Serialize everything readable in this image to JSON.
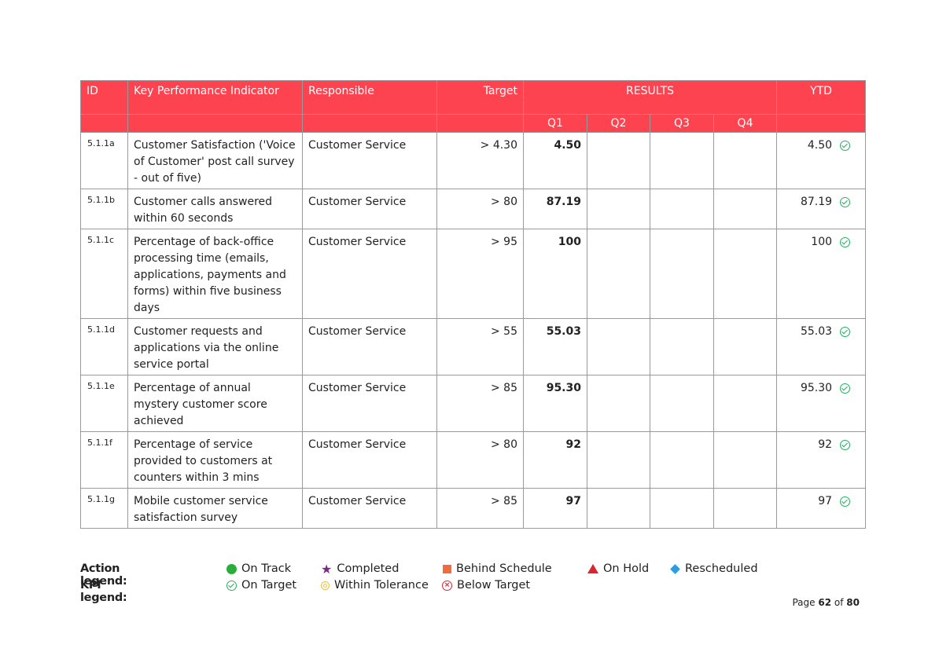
{
  "table": {
    "headers": {
      "id": "ID",
      "kpi": "Key Performance Indicator",
      "responsible": "Responsible",
      "target": "Target",
      "results": "RESULTS",
      "ytd": "YTD",
      "quarters": [
        "Q1",
        "Q2",
        "Q3",
        "Q4"
      ]
    },
    "rows": [
      {
        "id": "5.1.1a",
        "kpi": "Customer Satisfaction ('Voice of Customer' post call survey - out of five)",
        "responsible": "Customer Service",
        "target": "> 4.30",
        "q1": "4.50",
        "q2": "",
        "q3": "",
        "q4": "",
        "ytd": "4.50",
        "status": "on-target-icon"
      },
      {
        "id": "5.1.1b",
        "kpi": "Customer calls answered within 60 seconds",
        "responsible": "Customer Service",
        "target": "> 80",
        "q1": "87.19",
        "q2": "",
        "q3": "",
        "q4": "",
        "ytd": "87.19",
        "status": "on-target-icon"
      },
      {
        "id": "5.1.1c",
        "kpi": "Percentage of back-office processing time (emails, applications, payments and forms) within five business days",
        "responsible": "Customer Service",
        "target": "> 95",
        "q1": "100",
        "q2": "",
        "q3": "",
        "q4": "",
        "ytd": "100",
        "status": "on-target-icon"
      },
      {
        "id": "5.1.1d",
        "kpi": "Customer requests and applications via the online service portal",
        "responsible": "Customer Service",
        "target": "> 55",
        "q1": "55.03",
        "q2": "",
        "q3": "",
        "q4": "",
        "ytd": "55.03",
        "status": "on-target-icon"
      },
      {
        "id": "5.1.1e",
        "kpi": "Percentage of annual mystery customer score achieved",
        "responsible": "Customer Service",
        "target": "> 85",
        "q1": "95.30",
        "q2": "",
        "q3": "",
        "q4": "",
        "ytd": "95.30",
        "status": "on-target-icon"
      },
      {
        "id": "5.1.1f",
        "kpi": "Percentage of service provided to customers at counters within 3 mins",
        "responsible": "Customer Service",
        "target": "> 80",
        "q1": "92",
        "q2": "",
        "q3": "",
        "q4": "",
        "ytd": "92",
        "status": "on-target-icon"
      },
      {
        "id": "5.1.1g",
        "kpi": "Mobile customer service satisfaction survey",
        "responsible": "Customer Service",
        "target": "> 85",
        "q1": "97",
        "q2": "",
        "q3": "",
        "q4": "",
        "ytd": "97",
        "status": "on-target-icon"
      }
    ]
  },
  "legend": {
    "action_title": "Action legend:",
    "kpi_title": "KPI legend:",
    "action_items": [
      {
        "label": "On Track",
        "icon": "green-dot-icon"
      },
      {
        "label": "Completed",
        "icon": "purple-star-icon"
      },
      {
        "label": "Behind Schedule",
        "icon": "orange-square-icon"
      },
      {
        "label": "On Hold",
        "icon": "red-triangle-icon"
      },
      {
        "label": "Rescheduled",
        "icon": "blue-diamond-icon"
      }
    ],
    "kpi_items": [
      {
        "label": "On Target",
        "icon": "green-check-circle-icon"
      },
      {
        "label": "Within Tolerance",
        "icon": "yellow-ring-icon"
      },
      {
        "label": "Below Target",
        "icon": "red-x-circle-icon"
      }
    ]
  },
  "page": {
    "prefix": "Page",
    "current": "62",
    "of": "of",
    "total": "80"
  },
  "colors": {
    "header_bg": "#fe4350",
    "on_track": "#2aad3b",
    "completed": "#7b2b83",
    "behind": "#f26b3a",
    "on_hold": "#d9262f",
    "rescheduled": "#2d9be3"
  }
}
